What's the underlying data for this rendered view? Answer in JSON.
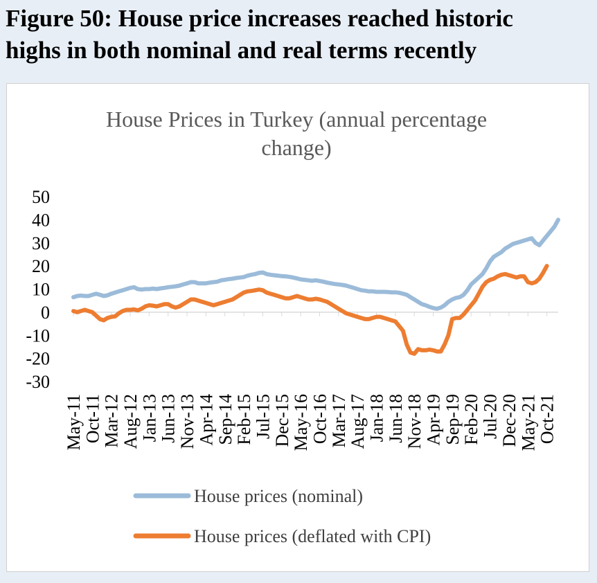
{
  "figure": {
    "title_line1": "Figure 50: House price increases reached historic",
    "title_line2": "highs in both nominal and real terms recently"
  },
  "colors": {
    "nominal": "#9bbbd9",
    "real": "#ed7d31",
    "background": "#e7eef6"
  },
  "chart_data": {
    "type": "line",
    "title_line1": "House Prices in Turkey (annual percentage",
    "title_line2": "change)",
    "xlabel": "",
    "ylabel": "",
    "ylim": [
      -30,
      50
    ],
    "yticks": [
      50,
      40,
      30,
      20,
      10,
      0,
      -10,
      -20,
      -30
    ],
    "ytick_labels": [
      "50",
      "40",
      "30",
      "20",
      "10",
      "0",
      "-10",
      "-20",
      "-30"
    ],
    "x_start": "2011-05",
    "x_end": "2021-10",
    "x_tick_labels": [
      "May-11",
      "Oct-11",
      "Mar-12",
      "Aug-12",
      "Jan-13",
      "Jun-13",
      "Nov-13",
      "Apr-14",
      "Sep-14",
      "Feb-15",
      "Jul-15",
      "Dec-15",
      "May-16",
      "Oct-16",
      "Mar-17",
      "Aug-17",
      "Jan-18",
      "Jun-18",
      "Nov-18",
      "Apr-19",
      "Sep-19",
      "Feb-20",
      "Jul-20",
      "Dec-20",
      "May-21",
      "Oct-21"
    ],
    "legend_position": "bottom",
    "series": [
      {
        "name": "House prices (nominal)",
        "color": "#9bbbd9",
        "values": [
          6.5,
          7,
          7.2,
          7,
          7,
          7.5,
          8,
          7.5,
          7,
          7.3,
          8,
          8.5,
          9,
          9.5,
          10,
          10.5,
          10.8,
          10,
          9.8,
          10,
          10,
          10.2,
          10,
          10.3,
          10.5,
          10.8,
          11,
          11.2,
          11.5,
          12,
          12.5,
          13,
          13,
          12.5,
          12.5,
          12.5,
          12.8,
          13,
          13.2,
          13.8,
          14,
          14.3,
          14.5,
          14.8,
          15,
          15.2,
          15.8,
          16.2,
          16.5,
          17,
          17.2,
          16.5,
          16.2,
          16,
          15.8,
          15.6,
          15.5,
          15.3,
          15,
          14.6,
          14.2,
          14,
          13.8,
          13.6,
          13.8,
          13.5,
          13.2,
          12.8,
          12.5,
          12.2,
          12,
          11.8,
          11.5,
          11,
          10.5,
          10,
          9.5,
          9.3,
          9,
          9,
          8.8,
          8.8,
          8.8,
          8.7,
          8.6,
          8.6,
          8.4,
          8,
          7.5,
          6.5,
          5.5,
          4.5,
          3.5,
          3,
          2.3,
          1.8,
          1.5,
          2,
          3,
          4.5,
          5.5,
          6.2,
          6.5,
          7.5,
          9.5,
          12,
          13.5,
          15,
          16.5,
          19,
          22,
          24,
          25,
          26,
          27.5,
          28.5,
          29.5,
          30,
          30.5,
          31,
          31.5,
          32,
          30,
          29,
          31,
          33,
          35,
          37,
          40
        ]
      },
      {
        "name": "House prices (deflated with CPI)",
        "color": "#ed7d31",
        "values": [
          0.5,
          0,
          0.5,
          1,
          0.5,
          0,
          -1.5,
          -3,
          -3.5,
          -2.5,
          -2,
          -1.8,
          -0.5,
          0.5,
          1,
          1,
          1.2,
          0.8,
          1.5,
          2.5,
          3,
          2.8,
          2.5,
          3,
          3.5,
          3.5,
          2.5,
          2,
          2.5,
          3.5,
          4.5,
          5.5,
          5.5,
          5,
          4.5,
          4,
          3.5,
          3,
          3.5,
          4,
          4.5,
          5,
          5.5,
          6.5,
          7.5,
          8.5,
          9,
          9.2,
          9.5,
          9.8,
          9.5,
          8.5,
          8,
          7.5,
          7,
          6.5,
          6,
          6,
          6.5,
          7,
          6.5,
          6,
          5.5,
          5.5,
          5.8,
          5.5,
          5,
          4.5,
          3.5,
          2.5,
          1.5,
          0.5,
          -0.5,
          -1,
          -1.5,
          -2,
          -2.5,
          -3,
          -3,
          -2.5,
          -2,
          -2,
          -2.5,
          -3,
          -3.5,
          -4,
          -6,
          -8,
          -14,
          -17.5,
          -18,
          -16,
          -16.5,
          -16.5,
          -16.2,
          -16.5,
          -17,
          -17,
          -14,
          -10,
          -3,
          -2.5,
          -2.5,
          -1,
          1,
          3,
          5,
          8,
          11,
          13,
          14,
          14.5,
          15.5,
          16.2,
          16.5,
          16,
          15.5,
          15,
          15.5,
          15.5,
          13,
          12.5,
          13,
          14.5,
          17,
          20
        ]
      }
    ]
  }
}
